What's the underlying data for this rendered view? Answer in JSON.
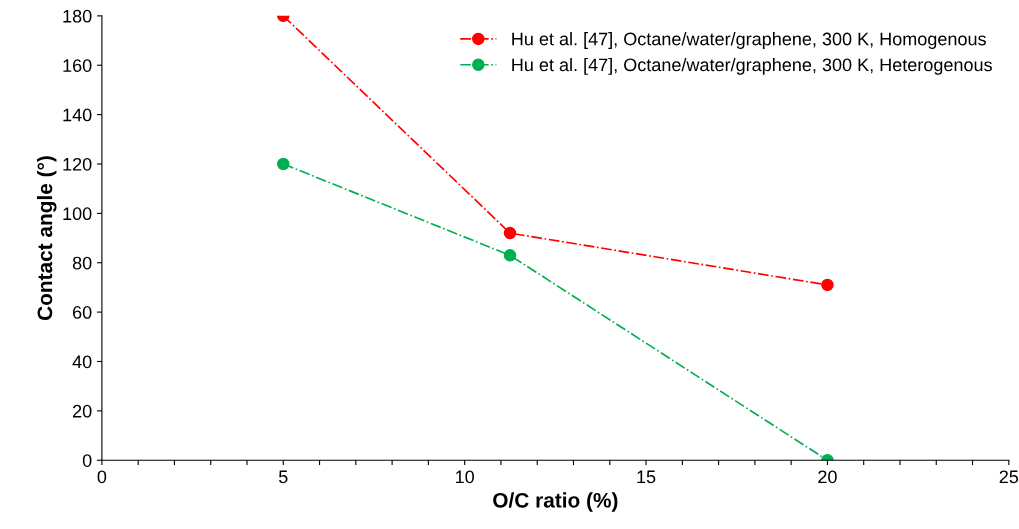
{
  "chart_data": {
    "type": "line",
    "xlabel": "O/C ratio (%)",
    "ylabel": "Contact angle (°)",
    "x": [
      5,
      11.25,
      20
    ],
    "series": [
      {
        "name": "Hu et al. [47], Octane/water/graphene, 300 K, Homogenous",
        "color": "#ff0000",
        "values": [
          180,
          92,
          71
        ]
      },
      {
        "name": "Hu et al. [47], Octane/water/graphene, 300 K, Heterogenous",
        "color": "#00b050",
        "values": [
          120,
          83,
          0
        ]
      }
    ],
    "xlim": [
      0,
      25
    ],
    "ylim": [
      0,
      180
    ],
    "xticks": [
      0,
      {
        "value": 1,
        "label": null
      },
      {
        "value": 2,
        "label": null
      },
      {
        "value": 3,
        "label": null
      },
      {
        "value": 4,
        "label": null
      },
      5,
      {
        "value": 6,
        "label": null
      },
      {
        "value": 7,
        "label": null
      },
      {
        "value": 8,
        "label": null
      },
      {
        "value": 9,
        "label": null
      },
      10,
      {
        "value": 11,
        "label": null
      },
      {
        "value": 12,
        "label": null
      },
      {
        "value": 13,
        "label": null
      },
      {
        "value": 14,
        "label": null
      },
      15,
      {
        "value": 16,
        "label": null
      },
      {
        "value": 17,
        "label": null
      },
      {
        "value": 18,
        "label": null
      },
      {
        "value": 19,
        "label": null
      },
      20,
      {
        "value": 21,
        "label": null
      },
      {
        "value": 22,
        "label": null
      },
      {
        "value": 23,
        "label": null
      },
      {
        "value": 24,
        "label": null
      },
      25
    ],
    "yticks": [
      0,
      20,
      40,
      60,
      80,
      100,
      120,
      140,
      160,
      180
    ],
    "grid": false,
    "legend": "top right",
    "marker": "circle",
    "line_style": "dashdot"
  }
}
